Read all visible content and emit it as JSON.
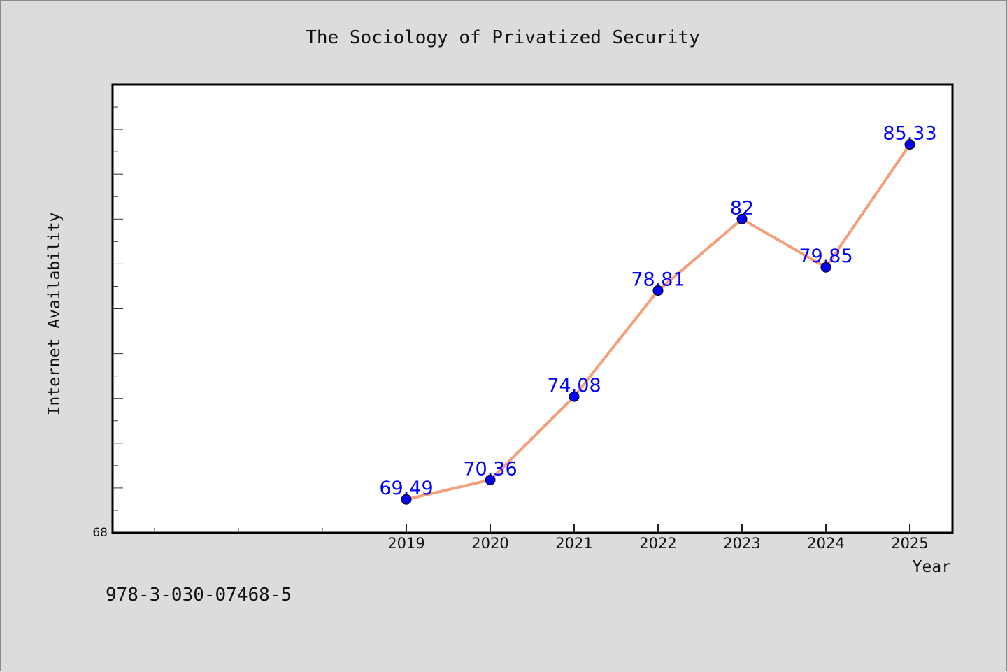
{
  "footer": {
    "isbn": "978-3-030-07468-5"
  },
  "chart_data": {
    "type": "line",
    "title": "The Sociology of Privatized Security",
    "xlabel": "Year",
    "ylabel": "Internet Availability",
    "x": [
      "2019",
      "2020",
      "2021",
      "2022",
      "2023",
      "2024",
      "2025"
    ],
    "series": [
      {
        "values": [
          69.49,
          70.36,
          74.08,
          78.81,
          82,
          79.85,
          85.33
        ],
        "labels": [
          "69.49",
          "70.36",
          "74.08",
          "78.81",
          "82",
          "79.85",
          "85.33"
        ],
        "line_color": "#f4a07c",
        "marker_color": "#0000ee",
        "label_color": "#0000ff"
      }
    ],
    "yticks": [
      "68"
    ],
    "ylim": [
      68,
      88
    ],
    "grid": false,
    "background": "#ffffff"
  }
}
